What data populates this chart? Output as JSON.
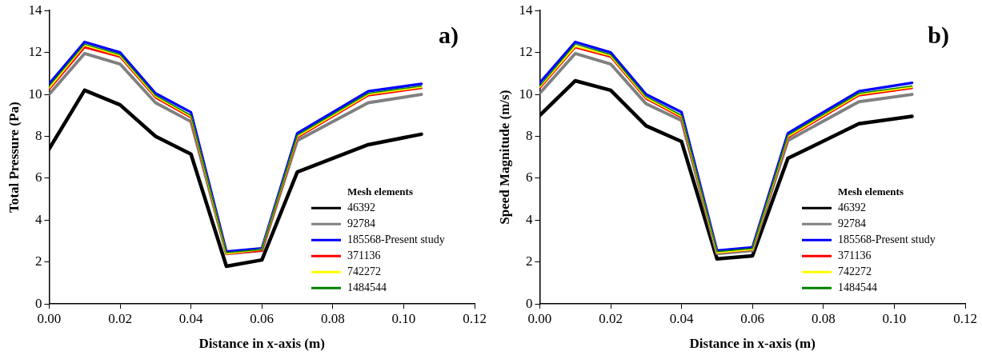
{
  "chart_data": [
    {
      "type": "line",
      "xlabel": "Distance in x-axis (m)",
      "ylabel": "Total Pressure (Pa)",
      "legend_title": "Mesh elements",
      "legend": "bottom right",
      "annotations": [
        "a)"
      ],
      "grid": false,
      "marker": "none",
      "line_style": "solid",
      "x": [
        0,
        0.01,
        0.02,
        0.03,
        0.04,
        0.05,
        0.06,
        0.07,
        0.09,
        0.105
      ],
      "xlim": [
        0,
        0.12
      ],
      "xticks": [
        {
          "value": 0,
          "label": "0.00"
        },
        {
          "value": 0.02,
          "label": "0.02"
        },
        {
          "value": 0.04,
          "label": "0.04"
        },
        {
          "value": 0.06,
          "label": "0.06"
        },
        {
          "value": 0.08,
          "label": "0.08"
        },
        {
          "value": 0.1,
          "label": "0.10"
        },
        {
          "value": 0.12,
          "label": "0.12"
        }
      ],
      "ylim": [
        0,
        14
      ],
      "yticks": [
        0,
        2,
        4,
        6,
        8,
        10,
        12,
        14
      ],
      "series": [
        {
          "name": "46392",
          "color": "#000000",
          "values": [
            7.4,
            10.2,
            9.5,
            8.0,
            7.15,
            1.8,
            2.1,
            6.3,
            7.6,
            8.1
          ]
        },
        {
          "name": "92784",
          "color": "#808080",
          "values": [
            10.0,
            11.95,
            11.45,
            9.6,
            8.7,
            2.4,
            2.55,
            7.8,
            9.6,
            10.0
          ]
        },
        {
          "name": "185568-Present study",
          "color": "#0000ff",
          "values": [
            10.5,
            12.5,
            12.0,
            10.05,
            9.15,
            2.5,
            2.65,
            8.15,
            10.15,
            10.5
          ]
        },
        {
          "name": "371136",
          "color": "#ff0000",
          "values": [
            10.25,
            12.25,
            11.8,
            9.85,
            8.9,
            2.4,
            2.55,
            7.95,
            9.95,
            10.3
          ]
        },
        {
          "name": "742272",
          "color": "#ffff00",
          "values": [
            10.3,
            12.35,
            11.85,
            9.9,
            8.95,
            2.4,
            2.6,
            8.0,
            10.0,
            10.35
          ]
        },
        {
          "name": "1484544",
          "color": "#008000",
          "values": [
            10.4,
            12.4,
            11.9,
            9.95,
            9.0,
            2.45,
            2.6,
            8.05,
            10.05,
            10.4
          ]
        }
      ]
    },
    {
      "type": "line",
      "xlabel": "Distance in x-axis (m)",
      "ylabel": "Speed Magnitude (m/s)",
      "legend_title": "Mesh elements",
      "legend": "bottom right",
      "annotations": [
        "b)"
      ],
      "grid": false,
      "marker": "none",
      "line_style": "solid",
      "x": [
        0,
        0.01,
        0.02,
        0.03,
        0.04,
        0.05,
        0.06,
        0.07,
        0.09,
        0.105
      ],
      "xlim": [
        0,
        0.12
      ],
      "xticks": [
        {
          "value": 0,
          "label": "0.00"
        },
        {
          "value": 0.02,
          "label": "0.02"
        },
        {
          "value": 0.04,
          "label": "0.04"
        },
        {
          "value": 0.06,
          "label": "0.06"
        },
        {
          "value": 0.08,
          "label": "0.08"
        },
        {
          "value": 0.1,
          "label": "0.10"
        },
        {
          "value": 0.12,
          "label": "0.12"
        }
      ],
      "ylim": [
        0,
        14
      ],
      "yticks": [
        0,
        2,
        4,
        6,
        8,
        10,
        12,
        14
      ],
      "series": [
        {
          "name": "46392",
          "color": "#000000",
          "values": [
            9.0,
            10.65,
            10.2,
            8.5,
            7.75,
            2.15,
            2.3,
            6.95,
            8.6,
            8.95
          ]
        },
        {
          "name": "92784",
          "color": "#808080",
          "values": [
            10.05,
            11.95,
            11.45,
            9.55,
            8.75,
            2.4,
            2.55,
            7.8,
            9.65,
            10.0
          ]
        },
        {
          "name": "185568-Present study",
          "color": "#0000ff",
          "values": [
            10.55,
            12.5,
            12.0,
            10.0,
            9.15,
            2.55,
            2.7,
            8.15,
            10.15,
            10.55
          ]
        },
        {
          "name": "371136",
          "color": "#ff0000",
          "values": [
            10.3,
            12.25,
            11.8,
            9.8,
            8.9,
            2.45,
            2.6,
            7.95,
            9.95,
            10.3
          ]
        },
        {
          "name": "742272",
          "color": "#ffff00",
          "values": [
            10.35,
            12.3,
            11.85,
            9.85,
            8.95,
            2.45,
            2.6,
            8.0,
            10.0,
            10.35
          ]
        },
        {
          "name": "1484544",
          "color": "#008000",
          "values": [
            10.4,
            12.4,
            11.9,
            9.9,
            9.0,
            2.5,
            2.65,
            8.05,
            10.05,
            10.4
          ]
        }
      ]
    }
  ]
}
